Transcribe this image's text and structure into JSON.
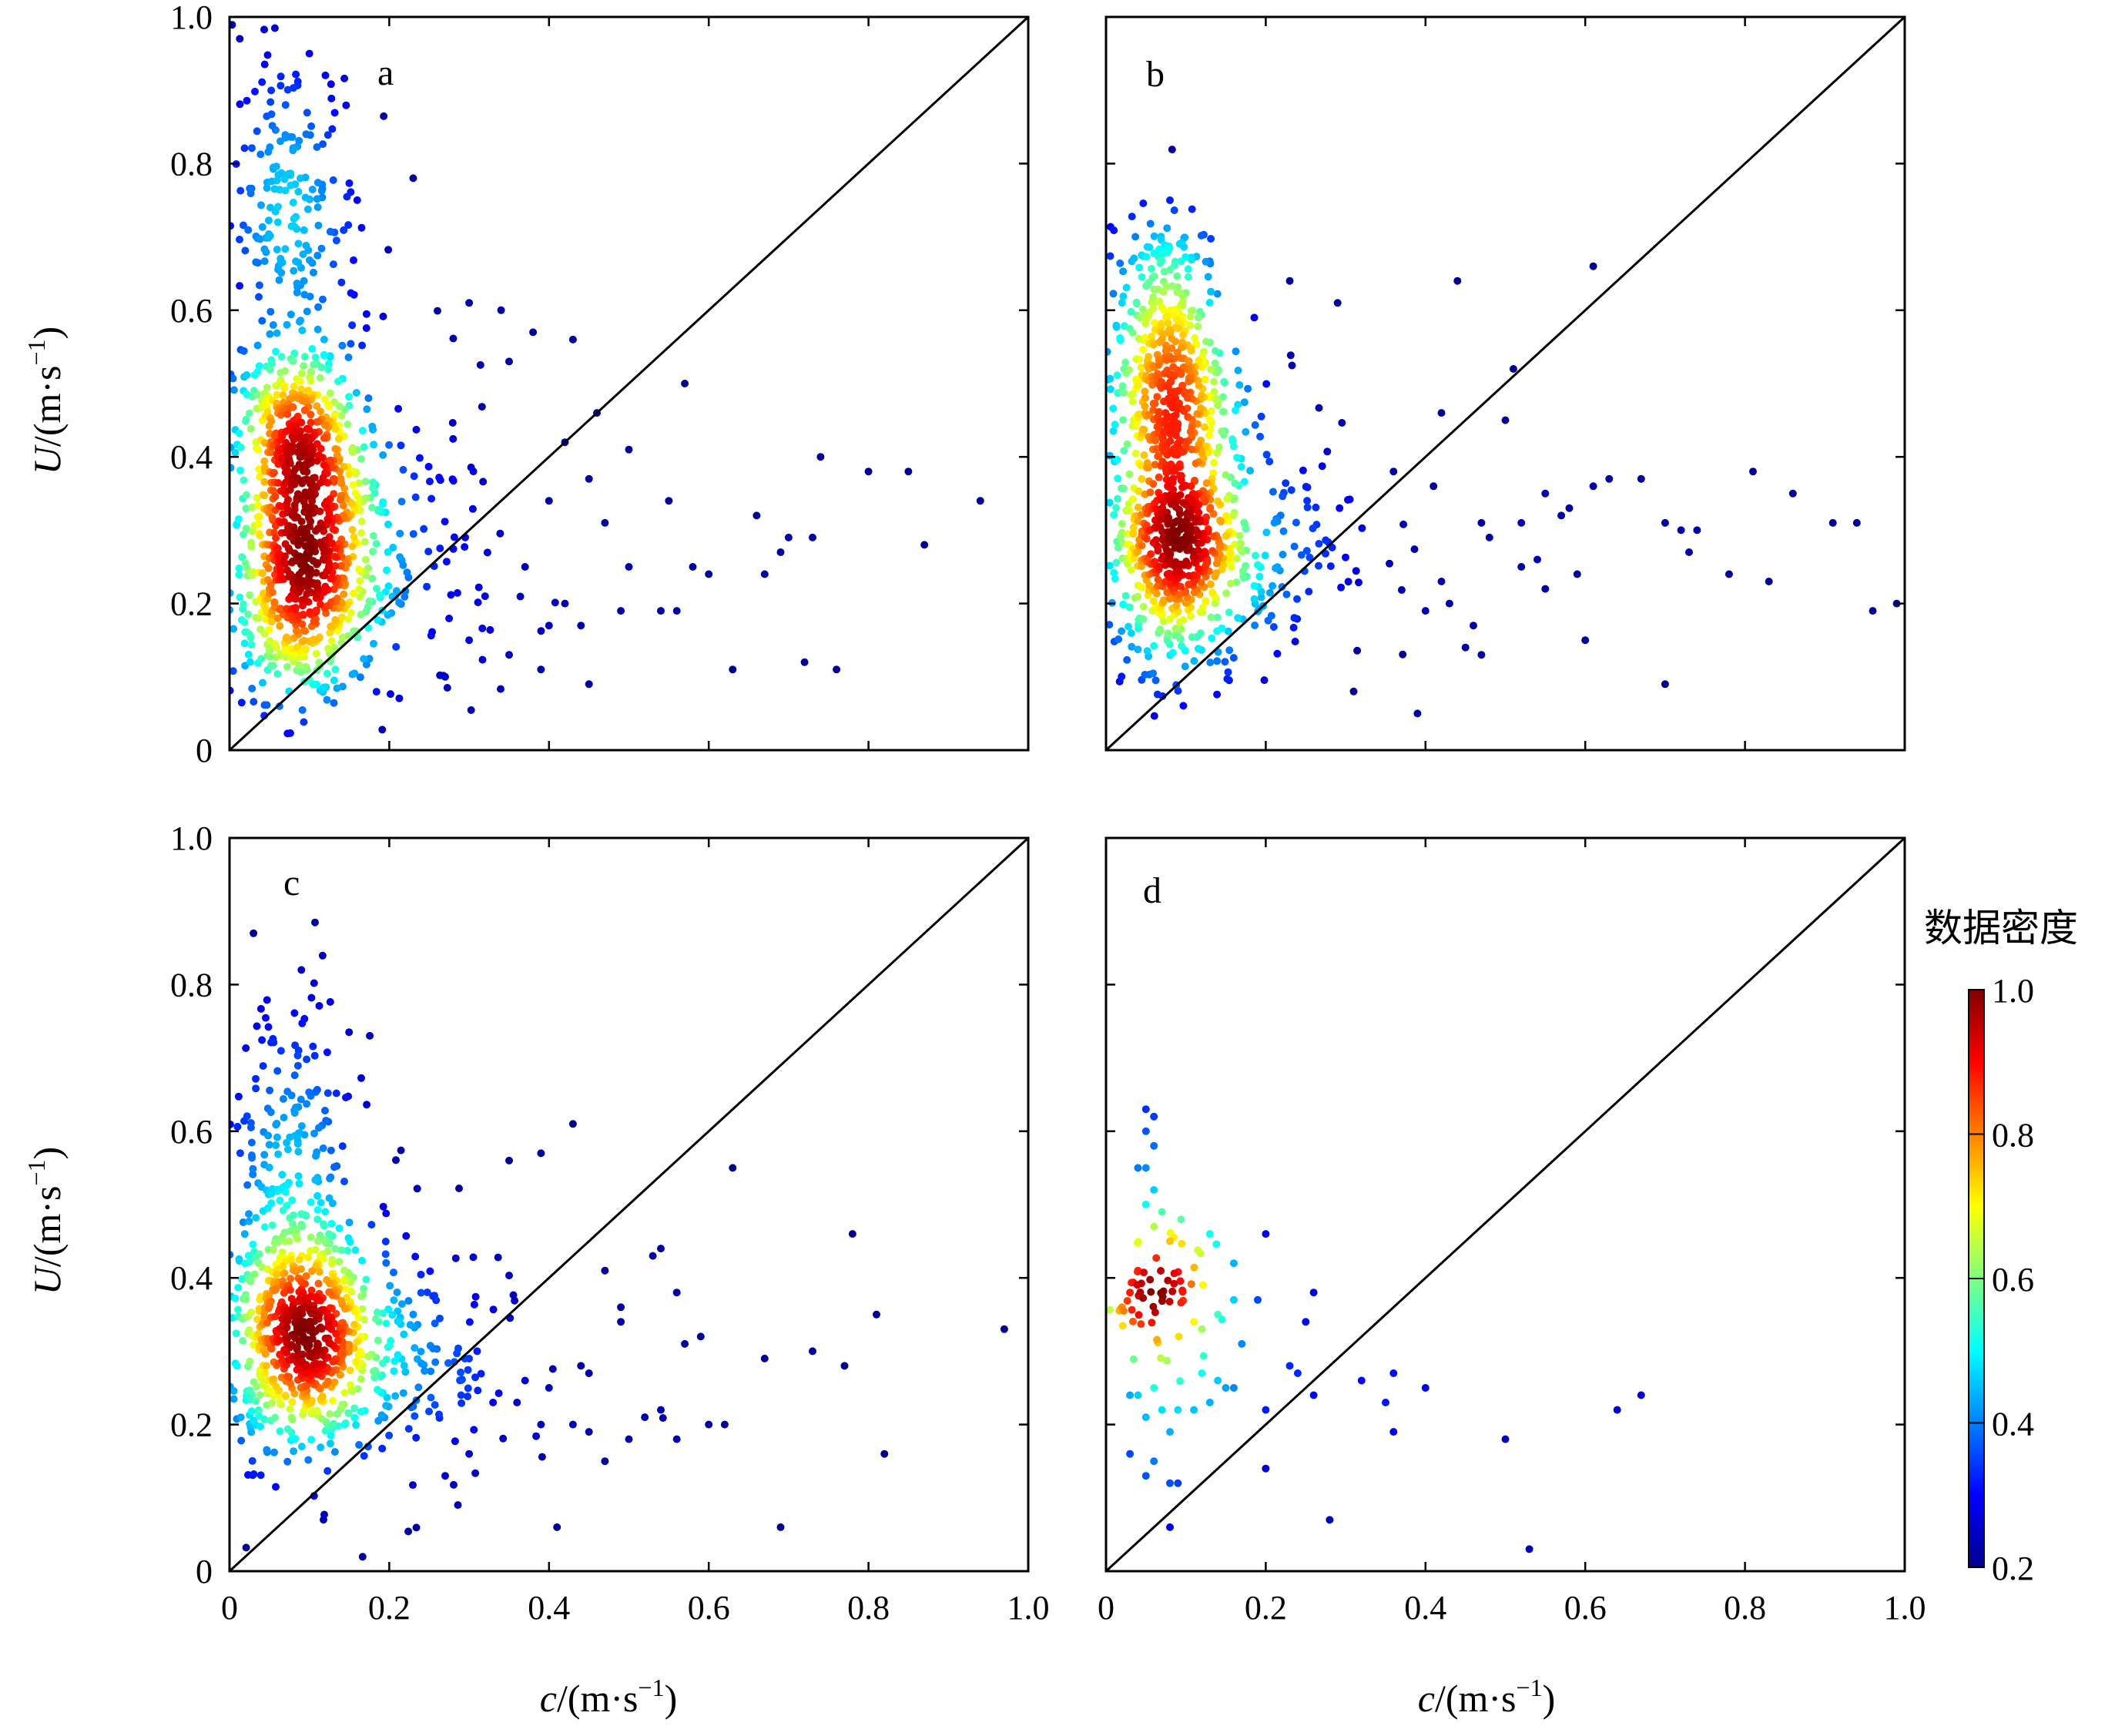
{
  "colorbar": {
    "title": "数据密度",
    "ticks": [
      "1.0",
      "0.8",
      "0.6",
      "0.4",
      "0.2"
    ],
    "tick_values": [
      1.0,
      0.8,
      0.6,
      0.4,
      0.2
    ],
    "range": [
      0.2,
      1.0
    ],
    "colormap": "jet",
    "colors": [
      "#00008f",
      "#0000ff",
      "#0080ff",
      "#00ffff",
      "#80ff80",
      "#ffff00",
      "#ff8000",
      "#ff0000",
      "#800000"
    ]
  },
  "axes": {
    "x_ticks": [
      "0",
      "0.2",
      "0.4",
      "0.6",
      "0.8",
      "1.0"
    ],
    "y_ticks": [
      "0",
      "0.2",
      "0.4",
      "0.6",
      "0.8",
      "1.0"
    ],
    "x_title_italic": "c",
    "x_title_rest": "/(m·s",
    "x_title_sup": "−1",
    "x_title_close": ")",
    "y_title_italic": "U",
    "y_title_rest": "/(m·s",
    "y_title_sup": "−1",
    "y_title_close": ")"
  },
  "chart_data": [
    {
      "type": "scatter",
      "panel": "a",
      "xlim": [
        0,
        1.0
      ],
      "ylim": [
        0,
        1.0
      ],
      "reference_line": "y = x",
      "color_by": "data density",
      "clusters": [
        {
          "cx": 0.09,
          "cy": 0.22,
          "sx": 0.045,
          "sy": 0.075,
          "n": 520
        },
        {
          "cx": 0.085,
          "cy": 0.41,
          "sx": 0.04,
          "sy": 0.07,
          "n": 420
        },
        {
          "cx": 0.075,
          "cy": 0.72,
          "sx": 0.045,
          "sy": 0.12,
          "n": 230
        },
        {
          "cx": 0.2,
          "cy": 0.25,
          "sx": 0.07,
          "sy": 0.12,
          "n": 160
        }
      ],
      "points": [
        [
          0.1,
          0.95
        ],
        [
          0.23,
          0.78
        ],
        [
          0.3,
          0.61
        ],
        [
          0.34,
          0.6
        ],
        [
          0.38,
          0.57
        ],
        [
          0.43,
          0.56
        ],
        [
          0.57,
          0.5
        ],
        [
          0.35,
          0.53
        ],
        [
          0.46,
          0.46
        ],
        [
          0.42,
          0.42
        ],
        [
          0.5,
          0.41
        ],
        [
          0.45,
          0.37
        ],
        [
          0.4,
          0.34
        ],
        [
          0.47,
          0.31
        ],
        [
          0.55,
          0.34
        ],
        [
          0.5,
          0.25
        ],
        [
          0.49,
          0.19
        ],
        [
          0.56,
          0.19
        ],
        [
          0.54,
          0.19
        ],
        [
          0.58,
          0.25
        ],
        [
          0.63,
          0.11
        ],
        [
          0.66,
          0.32
        ],
        [
          0.69,
          0.27
        ],
        [
          0.7,
          0.29
        ],
        [
          0.73,
          0.29
        ],
        [
          0.72,
          0.12
        ],
        [
          0.74,
          0.4
        ],
        [
          0.76,
          0.11
        ],
        [
          0.8,
          0.38
        ],
        [
          0.85,
          0.38
        ],
        [
          0.87,
          0.28
        ],
        [
          0.94,
          0.34
        ],
        [
          0.27,
          0.1
        ],
        [
          0.35,
          0.13
        ],
        [
          0.4,
          0.17
        ],
        [
          0.42,
          0.2
        ],
        [
          0.44,
          0.17
        ],
        [
          0.45,
          0.09
        ],
        [
          0.37,
          0.25
        ],
        [
          0.32,
          0.21
        ],
        [
          0.3,
          0.15
        ],
        [
          0.39,
          0.11
        ],
        [
          0.6,
          0.24
        ],
        [
          0.67,
          0.24
        ]
      ],
      "color_range": [
        0.2,
        1.0
      ]
    },
    {
      "type": "scatter",
      "panel": "b",
      "xlim": [
        0,
        1.0
      ],
      "ylim": [
        0,
        1.0
      ],
      "reference_line": "y = x",
      "color_by": "data density",
      "clusters": [
        {
          "cx": 0.085,
          "cy": 0.29,
          "sx": 0.04,
          "sy": 0.09,
          "n": 560
        },
        {
          "cx": 0.075,
          "cy": 0.5,
          "sx": 0.035,
          "sy": 0.06,
          "n": 300
        },
        {
          "cx": 0.07,
          "cy": 0.64,
          "sx": 0.035,
          "sy": 0.05,
          "n": 120
        },
        {
          "cx": 0.18,
          "cy": 0.3,
          "sx": 0.08,
          "sy": 0.1,
          "n": 190
        }
      ],
      "points": [
        [
          0.08,
          0.75
        ],
        [
          0.23,
          0.64
        ],
        [
          0.29,
          0.61
        ],
        [
          0.44,
          0.64
        ],
        [
          0.61,
          0.66
        ],
        [
          0.51,
          0.52
        ],
        [
          0.42,
          0.46
        ],
        [
          0.5,
          0.45
        ],
        [
          0.36,
          0.38
        ],
        [
          0.41,
          0.36
        ],
        [
          0.47,
          0.31
        ],
        [
          0.52,
          0.31
        ],
        [
          0.55,
          0.35
        ],
        [
          0.57,
          0.32
        ],
        [
          0.58,
          0.33
        ],
        [
          0.61,
          0.36
        ],
        [
          0.63,
          0.37
        ],
        [
          0.67,
          0.37
        ],
        [
          0.7,
          0.31
        ],
        [
          0.72,
          0.3
        ],
        [
          0.74,
          0.3
        ],
        [
          0.73,
          0.27
        ],
        [
          0.78,
          0.24
        ],
        [
          0.81,
          0.38
        ],
        [
          0.83,
          0.23
        ],
        [
          0.86,
          0.35
        ],
        [
          0.91,
          0.31
        ],
        [
          0.94,
          0.31
        ],
        [
          0.96,
          0.19
        ],
        [
          0.99,
          0.2
        ],
        [
          0.39,
          0.05
        ],
        [
          0.6,
          0.15
        ],
        [
          0.7,
          0.09
        ],
        [
          0.45,
          0.14
        ],
        [
          0.47,
          0.13
        ],
        [
          0.48,
          0.29
        ],
        [
          0.52,
          0.25
        ],
        [
          0.54,
          0.26
        ],
        [
          0.55,
          0.22
        ],
        [
          0.59,
          0.24
        ],
        [
          0.42,
          0.23
        ],
        [
          0.4,
          0.19
        ],
        [
          0.43,
          0.2
        ],
        [
          0.46,
          0.17
        ],
        [
          0.31,
          0.08
        ]
      ],
      "color_range": [
        0.2,
        1.0
      ]
    },
    {
      "type": "scatter",
      "panel": "c",
      "xlim": [
        0,
        1.0
      ],
      "ylim": [
        0,
        1.0
      ],
      "reference_line": "y = x",
      "color_by": "data density",
      "clusters": [
        {
          "cx": 0.09,
          "cy": 0.32,
          "sx": 0.045,
          "sy": 0.08,
          "n": 620
        },
        {
          "cx": 0.07,
          "cy": 0.58,
          "sx": 0.045,
          "sy": 0.11,
          "n": 170
        },
        {
          "cx": 0.2,
          "cy": 0.3,
          "sx": 0.08,
          "sy": 0.1,
          "n": 190
        }
      ],
      "points": [
        [
          0.03,
          0.87
        ],
        [
          0.09,
          0.82
        ],
        [
          0.43,
          0.61
        ],
        [
          0.39,
          0.57
        ],
        [
          0.35,
          0.56
        ],
        [
          0.63,
          0.55
        ],
        [
          0.47,
          0.41
        ],
        [
          0.53,
          0.43
        ],
        [
          0.54,
          0.44
        ],
        [
          0.56,
          0.38
        ],
        [
          0.49,
          0.36
        ],
        [
          0.49,
          0.34
        ],
        [
          0.59,
          0.32
        ],
        [
          0.57,
          0.31
        ],
        [
          0.67,
          0.29
        ],
        [
          0.73,
          0.3
        ],
        [
          0.77,
          0.28
        ],
        [
          0.78,
          0.46
        ],
        [
          0.81,
          0.35
        ],
        [
          0.97,
          0.33
        ],
        [
          0.82,
          0.16
        ],
        [
          0.69,
          0.06
        ],
        [
          0.41,
          0.06
        ],
        [
          0.47,
          0.15
        ],
        [
          0.39,
          0.2
        ],
        [
          0.43,
          0.2
        ],
        [
          0.45,
          0.19
        ],
        [
          0.5,
          0.18
        ],
        [
          0.52,
          0.21
        ],
        [
          0.54,
          0.22
        ],
        [
          0.56,
          0.18
        ],
        [
          0.6,
          0.2
        ],
        [
          0.62,
          0.2
        ],
        [
          0.44,
          0.28
        ],
        [
          0.45,
          0.27
        ],
        [
          0.4,
          0.25
        ],
        [
          0.37,
          0.26
        ],
        [
          0.36,
          0.23
        ],
        [
          0.33,
          0.23
        ],
        [
          0.31,
          0.3
        ],
        [
          0.29,
          0.24
        ],
        [
          0.3,
          0.16
        ],
        [
          0.27,
          0.13
        ]
      ],
      "color_range": [
        0.2,
        1.0
      ]
    },
    {
      "type": "scatter",
      "panel": "d",
      "xlim": [
        0,
        1.0
      ],
      "ylim": [
        0,
        1.0
      ],
      "reference_line": "y = x",
      "color_by": "data density",
      "clusters": [
        {
          "cx": 0.06,
          "cy": 0.37,
          "sx": 0.02,
          "sy": 0.02,
          "n": 22
        },
        {
          "cx": 0.07,
          "cy": 0.38,
          "sx": 0.04,
          "sy": 0.05,
          "n": 40
        }
      ],
      "points": [
        [
          0.05,
          0.63
        ],
        [
          0.06,
          0.62
        ],
        [
          0.05,
          0.6
        ],
        [
          0.06,
          0.58
        ],
        [
          0.04,
          0.55
        ],
        [
          0.05,
          0.55
        ],
        [
          0.06,
          0.52
        ],
        [
          0.05,
          0.5
        ],
        [
          0.07,
          0.49
        ],
        [
          0.06,
          0.47
        ],
        [
          0.08,
          0.45
        ],
        [
          0.13,
          0.46
        ],
        [
          0.2,
          0.46
        ],
        [
          0.16,
          0.42
        ],
        [
          0.19,
          0.37
        ],
        [
          0.16,
          0.37
        ],
        [
          0.14,
          0.35
        ],
        [
          0.12,
          0.33
        ],
        [
          0.11,
          0.34
        ],
        [
          0.17,
          0.31
        ],
        [
          0.26,
          0.38
        ],
        [
          0.25,
          0.34
        ],
        [
          0.23,
          0.28
        ],
        [
          0.24,
          0.27
        ],
        [
          0.12,
          0.27
        ],
        [
          0.14,
          0.26
        ],
        [
          0.15,
          0.25
        ],
        [
          0.16,
          0.25
        ],
        [
          0.13,
          0.23
        ],
        [
          0.11,
          0.22
        ],
        [
          0.04,
          0.24
        ],
        [
          0.03,
          0.24
        ],
        [
          0.06,
          0.25
        ],
        [
          0.05,
          0.21
        ],
        [
          0.07,
          0.22
        ],
        [
          0.09,
          0.22
        ],
        [
          0.08,
          0.19
        ],
        [
          0.06,
          0.15
        ],
        [
          0.03,
          0.16
        ],
        [
          0.05,
          0.13
        ],
        [
          0.08,
          0.12
        ],
        [
          0.09,
          0.12
        ],
        [
          0.08,
          0.06
        ],
        [
          0.2,
          0.22
        ],
        [
          0.2,
          0.14
        ],
        [
          0.26,
          0.24
        ],
        [
          0.28,
          0.07
        ],
        [
          0.32,
          0.26
        ],
        [
          0.36,
          0.27
        ],
        [
          0.36,
          0.19
        ],
        [
          0.35,
          0.23
        ],
        [
          0.4,
          0.25
        ],
        [
          0.5,
          0.18
        ],
        [
          0.53,
          0.03
        ],
        [
          0.64,
          0.22
        ],
        [
          0.67,
          0.24
        ],
        [
          0.02,
          0.36
        ],
        [
          0.03,
          0.38
        ],
        [
          0.04,
          0.41
        ]
      ],
      "color_range": [
        0.2,
        1.0
      ]
    }
  ]
}
